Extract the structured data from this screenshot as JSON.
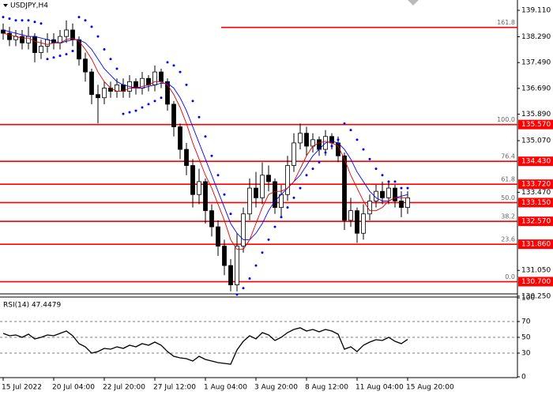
{
  "chart_data": {
    "type": "candlestick",
    "symbol": "USDJPY,H4",
    "categories": [
      "15 Jul 2022",
      null,
      null,
      null,
      null,
      null,
      null,
      null,
      "20 Jul 04:00",
      null,
      null,
      null,
      null,
      null,
      null,
      null,
      "22 Jul 20:00",
      null,
      null,
      null,
      null,
      null,
      null,
      null,
      "27 Jul 12:00",
      null,
      null,
      null,
      null,
      null,
      null,
      null,
      "1 Aug 04:00",
      null,
      null,
      null,
      null,
      null,
      null,
      null,
      "3 Aug 20:00",
      null,
      null,
      null,
      null,
      null,
      null,
      null,
      "8 Aug 12:00",
      null,
      null,
      null,
      null,
      null,
      null,
      null,
      "11 Aug 04:00",
      null,
      null,
      null,
      null,
      null,
      null,
      null,
      "15 Aug 20:00"
    ],
    "open": [
      138.5,
      138.4,
      138.2,
      138.3,
      138.1,
      138.3,
      137.8,
      138.0,
      138.2,
      138.1,
      138.3,
      138.5,
      138.2,
      137.6,
      137.2,
      136.5,
      136.4,
      136.7,
      136.6,
      136.8,
      136.6,
      136.9,
      136.7,
      137.0,
      136.8,
      137.2,
      136.9,
      136.2,
      135.5,
      134.8,
      134.3,
      133.4,
      133.8,
      132.9,
      132.4,
      131.8,
      131.2,
      130.6,
      131.8,
      132.8,
      133.6,
      133.3,
      134.0,
      133.8,
      133.0,
      133.4,
      134.3,
      135.0,
      135.3,
      134.9,
      135.1,
      134.8,
      135.2,
      135.0,
      134.6,
      132.6,
      132.9,
      132.2,
      132.8,
      133.2,
      133.5,
      133.3,
      133.6,
      133.2,
      133.0
    ],
    "high": [
      138.7,
      138.6,
      138.5,
      138.5,
      138.6,
      138.4,
      138.2,
      138.4,
      138.4,
      138.5,
      138.8,
      138.7,
      138.3,
      137.8,
      137.3,
      136.8,
      136.9,
      136.9,
      137.0,
      137.0,
      137.1,
      137.0,
      137.2,
      137.1,
      137.4,
      137.3,
      137.0,
      136.3,
      135.6,
      135.0,
      134.5,
      134.2,
      133.9,
      133.1,
      132.6,
      132.0,
      131.4,
      132.2,
      133.0,
      133.9,
      134.1,
      134.4,
      134.3,
      133.9,
      133.7,
      134.6,
      135.3,
      135.6,
      135.5,
      135.3,
      135.2,
      135.4,
      135.3,
      135.2,
      134.7,
      133.3,
      133.0,
      133.1,
      133.4,
      133.7,
      133.8,
      133.8,
      133.7,
      133.5,
      133.5
    ],
    "low": [
      138.2,
      138.0,
      138.0,
      137.9,
      137.9,
      137.5,
      137.6,
      137.8,
      137.9,
      137.9,
      138.1,
      138.0,
      137.4,
      136.9,
      136.2,
      135.6,
      136.2,
      136.4,
      136.4,
      136.4,
      136.4,
      136.5,
      136.5,
      136.6,
      136.6,
      136.7,
      136.0,
      135.2,
      134.5,
      134.0,
      133.0,
      133.1,
      132.5,
      132.1,
      131.5,
      130.9,
      130.4,
      130.4,
      131.6,
      132.6,
      133.0,
      133.1,
      133.5,
      132.8,
      132.7,
      133.2,
      134.1,
      134.8,
      134.6,
      134.7,
      134.6,
      134.6,
      134.8,
      134.4,
      132.3,
      132.4,
      131.9,
      132.0,
      132.6,
      133.0,
      133.1,
      133.1,
      133.0,
      132.7,
      132.8
    ],
    "close": [
      138.4,
      138.2,
      138.3,
      138.1,
      138.3,
      137.8,
      138.0,
      138.2,
      138.1,
      138.3,
      138.5,
      138.2,
      137.6,
      137.2,
      136.5,
      136.4,
      136.7,
      136.6,
      136.8,
      136.6,
      136.9,
      136.7,
      137.0,
      136.8,
      137.2,
      136.9,
      136.2,
      135.5,
      134.8,
      134.3,
      133.4,
      133.8,
      132.9,
      132.4,
      131.8,
      131.2,
      130.6,
      131.8,
      132.8,
      133.6,
      133.3,
      134.0,
      133.8,
      133.0,
      133.4,
      134.3,
      135.0,
      135.3,
      134.9,
      135.1,
      134.8,
      135.2,
      135.0,
      134.6,
      132.6,
      132.9,
      132.2,
      132.8,
      133.2,
      133.5,
      133.3,
      133.6,
      133.2,
      133.0,
      133.3
    ],
    "ma_fast": {
      "color": "#e00000",
      "values": [
        138.4,
        138.35,
        138.3,
        138.25,
        138.25,
        138.15,
        138.1,
        138.05,
        138.1,
        138.1,
        138.2,
        138.25,
        138.15,
        137.9,
        137.6,
        137.2,
        136.9,
        136.7,
        136.6,
        136.6,
        136.7,
        136.7,
        136.75,
        136.8,
        136.9,
        136.9,
        136.8,
        136.5,
        136.1,
        135.6,
        135.0,
        134.5,
        134.0,
        133.6,
        133.1,
        132.6,
        132.0,
        131.7,
        131.7,
        132.0,
        132.5,
        133.0,
        133.4,
        133.5,
        133.5,
        133.6,
        133.8,
        134.2,
        134.6,
        134.9,
        135.0,
        135.05,
        135.0,
        134.9,
        134.5,
        134.0,
        133.6,
        133.2,
        132.9,
        132.9,
        133.0,
        133.2,
        133.3,
        133.3,
        133.3
      ]
    },
    "ma_slow": {
      "color": "#0000ff",
      "values": [
        138.5,
        138.45,
        138.4,
        138.35,
        138.3,
        138.3,
        138.25,
        138.2,
        138.15,
        138.1,
        138.15,
        138.2,
        138.2,
        138.1,
        137.9,
        137.6,
        137.3,
        137.1,
        136.9,
        136.8,
        136.75,
        136.7,
        136.7,
        136.75,
        136.8,
        136.85,
        136.85,
        136.7,
        136.4,
        136.0,
        135.5,
        135.0,
        134.5,
        134.0,
        133.5,
        133.0,
        132.5,
        132.2,
        132.0,
        132.0,
        132.2,
        132.5,
        132.9,
        133.2,
        133.4,
        133.6,
        133.8,
        134.0,
        134.3,
        134.6,
        134.8,
        135.0,
        135.05,
        135.0,
        134.8,
        134.5,
        134.1,
        133.8,
        133.5,
        133.3,
        133.2,
        133.2,
        133.3,
        133.35,
        133.4
      ]
    },
    "sar": {
      "color": "#0000ff",
      "values": [
        138.9,
        138.85,
        138.8,
        138.8,
        138.8,
        138.75,
        138.7,
        137.6,
        137.65,
        137.7,
        137.75,
        137.85,
        138.9,
        138.8,
        138.6,
        138.3,
        137.9,
        137.6,
        137.3,
        135.9,
        135.95,
        136.0,
        136.1,
        136.2,
        136.3,
        136.4,
        137.5,
        137.4,
        137.2,
        136.8,
        136.3,
        135.8,
        135.2,
        134.6,
        134.0,
        133.4,
        132.8,
        130.3,
        130.5,
        130.8,
        131.2,
        131.6,
        132.0,
        132.4,
        132.7,
        133.0,
        133.3,
        133.6,
        134.0,
        134.2,
        134.4,
        134.7,
        134.9,
        135.1,
        135.6,
        135.4,
        135.1,
        134.8,
        134.5,
        134.2,
        134.0,
        133.8,
        133.8,
        133.6,
        133.6
      ]
    },
    "fib_color": "#ff0000",
    "fib_levels": [
      {
        "level": "161.8",
        "price": 138.58
      },
      {
        "level": "100.0",
        "price": 135.57,
        "price_label": "135.570"
      },
      {
        "level": "76.4",
        "price": 134.43,
        "price_label": "134.430"
      },
      {
        "level": "61.8",
        "price": 133.72,
        "price_label": "133.720"
      },
      {
        "level": "50.0",
        "price": 133.15,
        "price_label": "133.150"
      },
      {
        "level": "38.2",
        "price": 132.57,
        "price_label": "132.570"
      },
      {
        "level": "23.6",
        "price": 131.86,
        "price_label": "131.860"
      },
      {
        "level": "0.0",
        "price": 130.7,
        "price_label": "130.700"
      }
    ],
    "ylim": [
      130.37,
      139.43
    ],
    "yticks": [
      {
        "value": 139.11,
        "label": "139.110"
      },
      {
        "value": 138.29,
        "label": "138.290"
      },
      {
        "value": 137.49,
        "label": "137.490"
      },
      {
        "value": 136.69,
        "label": "136.690"
      },
      {
        "value": 135.89,
        "label": "135.890"
      },
      {
        "value": 135.07,
        "label": "135.070"
      },
      {
        "value": 133.47,
        "label": "133.470"
      },
      {
        "value": 131.05,
        "label": "131.050"
      },
      {
        "value": 130.25,
        "label": "130.250"
      }
    ],
    "rsi": {
      "title": "RSI(14) 47.4479",
      "color": "#000000",
      "values": [
        55,
        52,
        53,
        50,
        54,
        48,
        50,
        53,
        52,
        55,
        58,
        52,
        42,
        38,
        30,
        32,
        36,
        35,
        38,
        36,
        40,
        38,
        42,
        40,
        44,
        40,
        32,
        26,
        24,
        23,
        20,
        26,
        22,
        20,
        18,
        17,
        16,
        34,
        45,
        52,
        48,
        56,
        53,
        46,
        50,
        56,
        60,
        62,
        58,
        60,
        57,
        60,
        58,
        54,
        35,
        38,
        32,
        40,
        44,
        47,
        46,
        50,
        45,
        42,
        47.4479
      ],
      "ylim": [
        0,
        100
      ],
      "yticks": [
        100,
        70,
        50,
        30,
        0
      ],
      "levels": [
        70,
        50,
        30
      ]
    }
  }
}
